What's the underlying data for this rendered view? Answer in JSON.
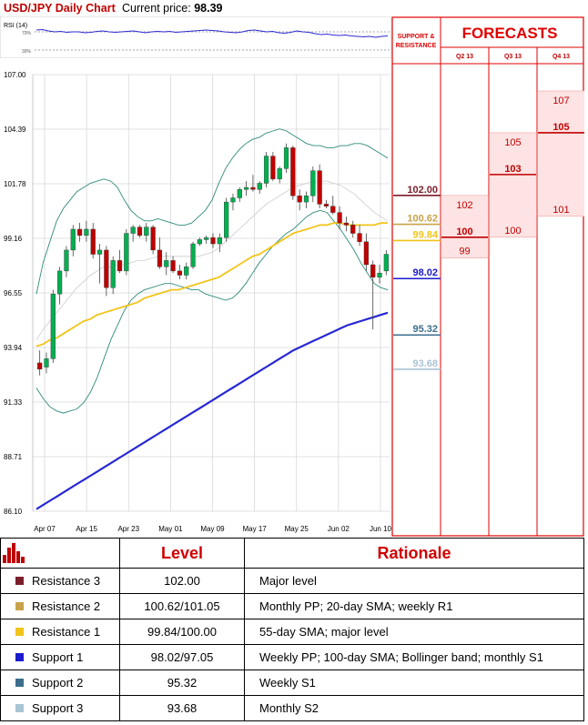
{
  "header": {
    "title": "USD/JPY Daily Chart",
    "price_label": "Current price:",
    "price_value": "98.39"
  },
  "rsi": {
    "label": "RSI (14)",
    "upper_label": "70%",
    "lower_label": "30%",
    "values": [
      74,
      75,
      72,
      70,
      71,
      69,
      70,
      70,
      68,
      69,
      71,
      72,
      70,
      69,
      70,
      71,
      72,
      70,
      68,
      70,
      71,
      70,
      71,
      69,
      70,
      71,
      72,
      73,
      74,
      73,
      72,
      70,
      69,
      68,
      70,
      73,
      74,
      72,
      70,
      71,
      68,
      67,
      69,
      72,
      70,
      69,
      66,
      64,
      65,
      63,
      62,
      63,
      61,
      60,
      59,
      60,
      58,
      60,
      61
    ]
  },
  "chart_data": {
    "type": "candlestick",
    "title": "USD/JPY Daily Chart",
    "ylim": [
      86.1,
      107.0
    ],
    "y_ticks": [
      "107.00",
      "104.39",
      "101.78",
      "99.16",
      "96.55",
      "93.94",
      "91.33",
      "88.71",
      "86.10"
    ],
    "x_ticks": [
      "Apr 07",
      "Apr 15",
      "Apr 23",
      "May 01",
      "May 09",
      "May 17",
      "May 25",
      "Jun 02",
      "Jun 10"
    ],
    "candles": [
      {
        "o": 93.2,
        "h": 93.8,
        "l": 92.6,
        "c": 92.9
      },
      {
        "o": 93.0,
        "h": 93.7,
        "l": 92.7,
        "c": 93.4
      },
      {
        "o": 93.4,
        "h": 96.7,
        "l": 93.2,
        "c": 96.5
      },
      {
        "o": 96.5,
        "h": 97.8,
        "l": 96.0,
        "c": 97.6
      },
      {
        "o": 97.6,
        "h": 98.8,
        "l": 97.3,
        "c": 98.6
      },
      {
        "o": 98.6,
        "h": 99.8,
        "l": 98.3,
        "c": 99.6
      },
      {
        "o": 99.6,
        "h": 99.9,
        "l": 99.0,
        "c": 99.3
      },
      {
        "o": 99.3,
        "h": 100.0,
        "l": 99.0,
        "c": 99.6
      },
      {
        "o": 99.6,
        "h": 99.9,
        "l": 98.2,
        "c": 98.4
      },
      {
        "o": 98.4,
        "h": 98.9,
        "l": 97.0,
        "c": 98.6
      },
      {
        "o": 98.6,
        "h": 98.8,
        "l": 96.4,
        "c": 96.8
      },
      {
        "o": 96.8,
        "h": 98.3,
        "l": 96.5,
        "c": 98.1
      },
      {
        "o": 98.1,
        "h": 98.6,
        "l": 97.5,
        "c": 97.6
      },
      {
        "o": 97.6,
        "h": 99.6,
        "l": 97.4,
        "c": 99.4
      },
      {
        "o": 99.4,
        "h": 99.8,
        "l": 99.0,
        "c": 99.7
      },
      {
        "o": 99.7,
        "h": 99.8,
        "l": 99.2,
        "c": 99.3
      },
      {
        "o": 99.3,
        "h": 99.9,
        "l": 99.0,
        "c": 99.7
      },
      {
        "o": 99.7,
        "h": 99.8,
        "l": 98.4,
        "c": 98.6
      },
      {
        "o": 98.6,
        "h": 99.2,
        "l": 97.7,
        "c": 97.8
      },
      {
        "o": 97.8,
        "h": 98.5,
        "l": 97.4,
        "c": 98.1
      },
      {
        "o": 98.1,
        "h": 98.3,
        "l": 97.5,
        "c": 97.6
      },
      {
        "o": 97.6,
        "h": 97.9,
        "l": 97.2,
        "c": 97.4
      },
      {
        "o": 97.4,
        "h": 98.0,
        "l": 97.2,
        "c": 97.8
      },
      {
        "o": 97.8,
        "h": 99.0,
        "l": 97.7,
        "c": 98.9
      },
      {
        "o": 98.9,
        "h": 99.2,
        "l": 98.8,
        "c": 99.1
      },
      {
        "o": 99.1,
        "h": 99.3,
        "l": 98.9,
        "c": 99.2
      },
      {
        "o": 99.2,
        "h": 99.4,
        "l": 98.7,
        "c": 98.9
      },
      {
        "o": 98.9,
        "h": 99.4,
        "l": 98.5,
        "c": 99.2
      },
      {
        "o": 99.2,
        "h": 101.1,
        "l": 99.0,
        "c": 100.9
      },
      {
        "o": 100.9,
        "h": 101.3,
        "l": 100.5,
        "c": 101.1
      },
      {
        "o": 101.1,
        "h": 101.6,
        "l": 100.9,
        "c": 101.5
      },
      {
        "o": 101.5,
        "h": 101.9,
        "l": 101.2,
        "c": 101.6
      },
      {
        "o": 101.6,
        "h": 102.2,
        "l": 101.4,
        "c": 101.5
      },
      {
        "o": 101.5,
        "h": 101.9,
        "l": 101.3,
        "c": 101.8
      },
      {
        "o": 101.8,
        "h": 103.3,
        "l": 101.6,
        "c": 103.1
      },
      {
        "o": 103.1,
        "h": 103.3,
        "l": 101.9,
        "c": 102.0
      },
      {
        "o": 102.0,
        "h": 102.6,
        "l": 101.8,
        "c": 102.5
      },
      {
        "o": 102.5,
        "h": 103.7,
        "l": 102.3,
        "c": 103.5
      },
      {
        "o": 103.5,
        "h": 103.6,
        "l": 101.0,
        "c": 101.2
      },
      {
        "o": 101.2,
        "h": 101.5,
        "l": 100.5,
        "c": 100.9
      },
      {
        "o": 100.9,
        "h": 101.4,
        "l": 100.6,
        "c": 101.2
      },
      {
        "o": 101.2,
        "h": 102.6,
        "l": 100.9,
        "c": 102.4
      },
      {
        "o": 102.4,
        "h": 102.7,
        "l": 100.6,
        "c": 100.8
      },
      {
        "o": 100.8,
        "h": 101.0,
        "l": 100.6,
        "c": 100.7
      },
      {
        "o": 100.7,
        "h": 101.2,
        "l": 100.3,
        "c": 100.4
      },
      {
        "o": 100.4,
        "h": 100.7,
        "l": 99.6,
        "c": 99.9
      },
      {
        "o": 99.9,
        "h": 100.2,
        "l": 99.5,
        "c": 99.8
      },
      {
        "o": 99.8,
        "h": 100.0,
        "l": 99.2,
        "c": 99.4
      },
      {
        "o": 99.4,
        "h": 99.8,
        "l": 98.8,
        "c": 99.0
      },
      {
        "o": 99.0,
        "h": 99.4,
        "l": 97.6,
        "c": 97.9
      },
      {
        "o": 97.9,
        "h": 98.1,
        "l": 94.8,
        "c": 97.3
      },
      {
        "o": 97.3,
        "h": 97.9,
        "l": 97.0,
        "c": 97.5
      },
      {
        "o": 97.6,
        "h": 98.6,
        "l": 97.4,
        "c": 98.4
      }
    ],
    "sma55": [
      94.0,
      94.1,
      94.3,
      94.4,
      94.6,
      94.8,
      95.0,
      95.2,
      95.3,
      95.5,
      95.6,
      95.7,
      95.8,
      95.9,
      96.0,
      96.1,
      96.3,
      96.4,
      96.5,
      96.6,
      96.7,
      96.7,
      96.8,
      96.9,
      97.0,
      97.1,
      97.2,
      97.3,
      97.5,
      97.7,
      97.9,
      98.1,
      98.3,
      98.4,
      98.6,
      98.8,
      99.0,
      99.2,
      99.4,
      99.5,
      99.6,
      99.7,
      99.8,
      99.8,
      99.9,
      99.9,
      99.8,
      99.8,
      99.8,
      99.8,
      99.8,
      99.9,
      99.9
    ],
    "sma100": [
      86.2,
      86.4,
      86.6,
      86.8,
      87.0,
      87.2,
      87.4,
      87.6,
      87.8,
      88.0,
      88.2,
      88.4,
      88.6,
      88.8,
      89.0,
      89.2,
      89.4,
      89.6,
      89.8,
      90.0,
      90.2,
      90.4,
      90.6,
      90.8,
      91.0,
      91.2,
      91.4,
      91.6,
      91.8,
      92.0,
      92.2,
      92.4,
      92.6,
      92.8,
      93.0,
      93.2,
      93.4,
      93.6,
      93.8,
      93.95,
      94.1,
      94.25,
      94.4,
      94.55,
      94.7,
      94.85,
      95.0,
      95.1,
      95.2,
      95.3,
      95.4,
      95.5,
      95.6
    ],
    "boll_upper": [
      96.5,
      98.0,
      99.0,
      100.0,
      100.6,
      101.0,
      101.4,
      101.6,
      101.8,
      101.9,
      102.0,
      101.9,
      101.6,
      101.0,
      100.5,
      100.2,
      100.0,
      100.0,
      100.1,
      100.0,
      99.9,
      99.8,
      99.8,
      99.9,
      100.2,
      100.5,
      101.0,
      101.8,
      102.5,
      103.0,
      103.4,
      103.7,
      103.9,
      104.0,
      104.2,
      104.3,
      104.4,
      104.3,
      104.1,
      103.9,
      103.7,
      103.6,
      103.6,
      103.5,
      103.5,
      103.6,
      103.6,
      103.7,
      103.7,
      103.6,
      103.4,
      103.2,
      103.0
    ],
    "boll_lower": [
      92.0,
      91.5,
      91.1,
      90.9,
      90.8,
      90.9,
      91.0,
      91.3,
      91.8,
      92.5,
      93.4,
      94.3,
      95.0,
      95.7,
      96.2,
      96.5,
      96.7,
      96.8,
      96.9,
      97.0,
      97.0,
      96.9,
      96.8,
      96.7,
      96.7,
      96.5,
      96.4,
      96.3,
      96.2,
      96.3,
      96.6,
      97.0,
      97.5,
      98.0,
      98.4,
      98.8,
      99.1,
      99.4,
      99.6,
      99.9,
      100.2,
      100.4,
      100.5,
      100.4,
      100.0,
      99.6,
      99.1,
      98.6,
      98.0,
      97.5,
      97.0,
      96.8,
      96.7
    ],
    "boll_mid": [
      94.3,
      94.8,
      95.2,
      95.6,
      96.0,
      96.4,
      96.8,
      97.1,
      97.4,
      97.6,
      97.8,
      97.8,
      97.9,
      97.9,
      98.0,
      98.1,
      98.1,
      98.2,
      98.3,
      98.3,
      98.3,
      98.3,
      98.3,
      98.3,
      98.3,
      98.4,
      98.5,
      98.7,
      99.0,
      99.3,
      99.6,
      99.9,
      100.2,
      100.5,
      100.8,
      101.0,
      101.2,
      101.4,
      101.6,
      101.7,
      101.8,
      101.9,
      101.9,
      101.9,
      101.8,
      101.7,
      101.5,
      101.3,
      101.0,
      100.7,
      100.4,
      100.2,
      100.0
    ],
    "levels": [
      {
        "name": "Resistance 3",
        "value": 102.0,
        "label": "102.00",
        "color": "#7a1f2b"
      },
      {
        "name": "Resistance 2",
        "value": 100.62,
        "label": "100.62",
        "color": "#c8a24a"
      },
      {
        "name": "Resistance 1",
        "value": 99.84,
        "label": "99.84",
        "color": "#f2c41a"
      },
      {
        "name": "Support 1",
        "value": 98.02,
        "label": "98.02",
        "color": "#1a1acc"
      },
      {
        "name": "Support 2",
        "value": 95.32,
        "label": "95.32",
        "color": "#3c6e8c"
      },
      {
        "name": "Support 3",
        "value": 93.68,
        "label": "93.68",
        "color": "#a9c4d4"
      }
    ],
    "colors": {
      "up": "#00b050",
      "down": "#c00000",
      "sma55": "#f2c41a",
      "sma100": "#2828d4",
      "bollinger": "#2e8b7a",
      "boll_mid": "#cccccc"
    }
  },
  "forecasts": {
    "title": "FORECASTS",
    "sr_label_line1": "SUPPORT &",
    "sr_label_line2": "RESISTANCE",
    "quarters": [
      {
        "label": "Q2 13",
        "high": 102,
        "low": 99,
        "target": 100,
        "high_label": "102",
        "low_label": "99",
        "target_label": "100"
      },
      {
        "label": "Q3 13",
        "high": 105,
        "low": 100,
        "target": 103,
        "high_label": "105",
        "low_label": "100",
        "target_label": "103"
      },
      {
        "label": "Q4 13",
        "high": 107,
        "low": 101,
        "target": 105,
        "high_label": "107",
        "low_label": "101",
        "target_label": "105"
      }
    ]
  },
  "table": {
    "headers": {
      "level": "Level",
      "rationale": "Rationale"
    },
    "rows": [
      {
        "name": "Resistance 3",
        "level": "102.00",
        "rationale": "Major level",
        "color": "#7a1f2b"
      },
      {
        "name": "Resistance 2",
        "level": "100.62/101.05",
        "rationale": "Monthly PP; 20-day SMA; weekly R1",
        "color": "#c8a24a"
      },
      {
        "name": "Resistance 1",
        "level": "99.84/100.00",
        "rationale": "55-day SMA; major level",
        "color": "#f2c41a"
      },
      {
        "name": "Support 1",
        "level": "98.02/97.05",
        "rationale": "Weekly PP; 100-day SMA; Bollinger band; monthly S1",
        "color": "#1a1acc"
      },
      {
        "name": "Support 2",
        "level": "95.32",
        "rationale": "Weekly S1",
        "color": "#3c6e8c"
      },
      {
        "name": "Support 3",
        "level": "93.68",
        "rationale": "Monthly S2",
        "color": "#a9c4d4"
      }
    ]
  }
}
